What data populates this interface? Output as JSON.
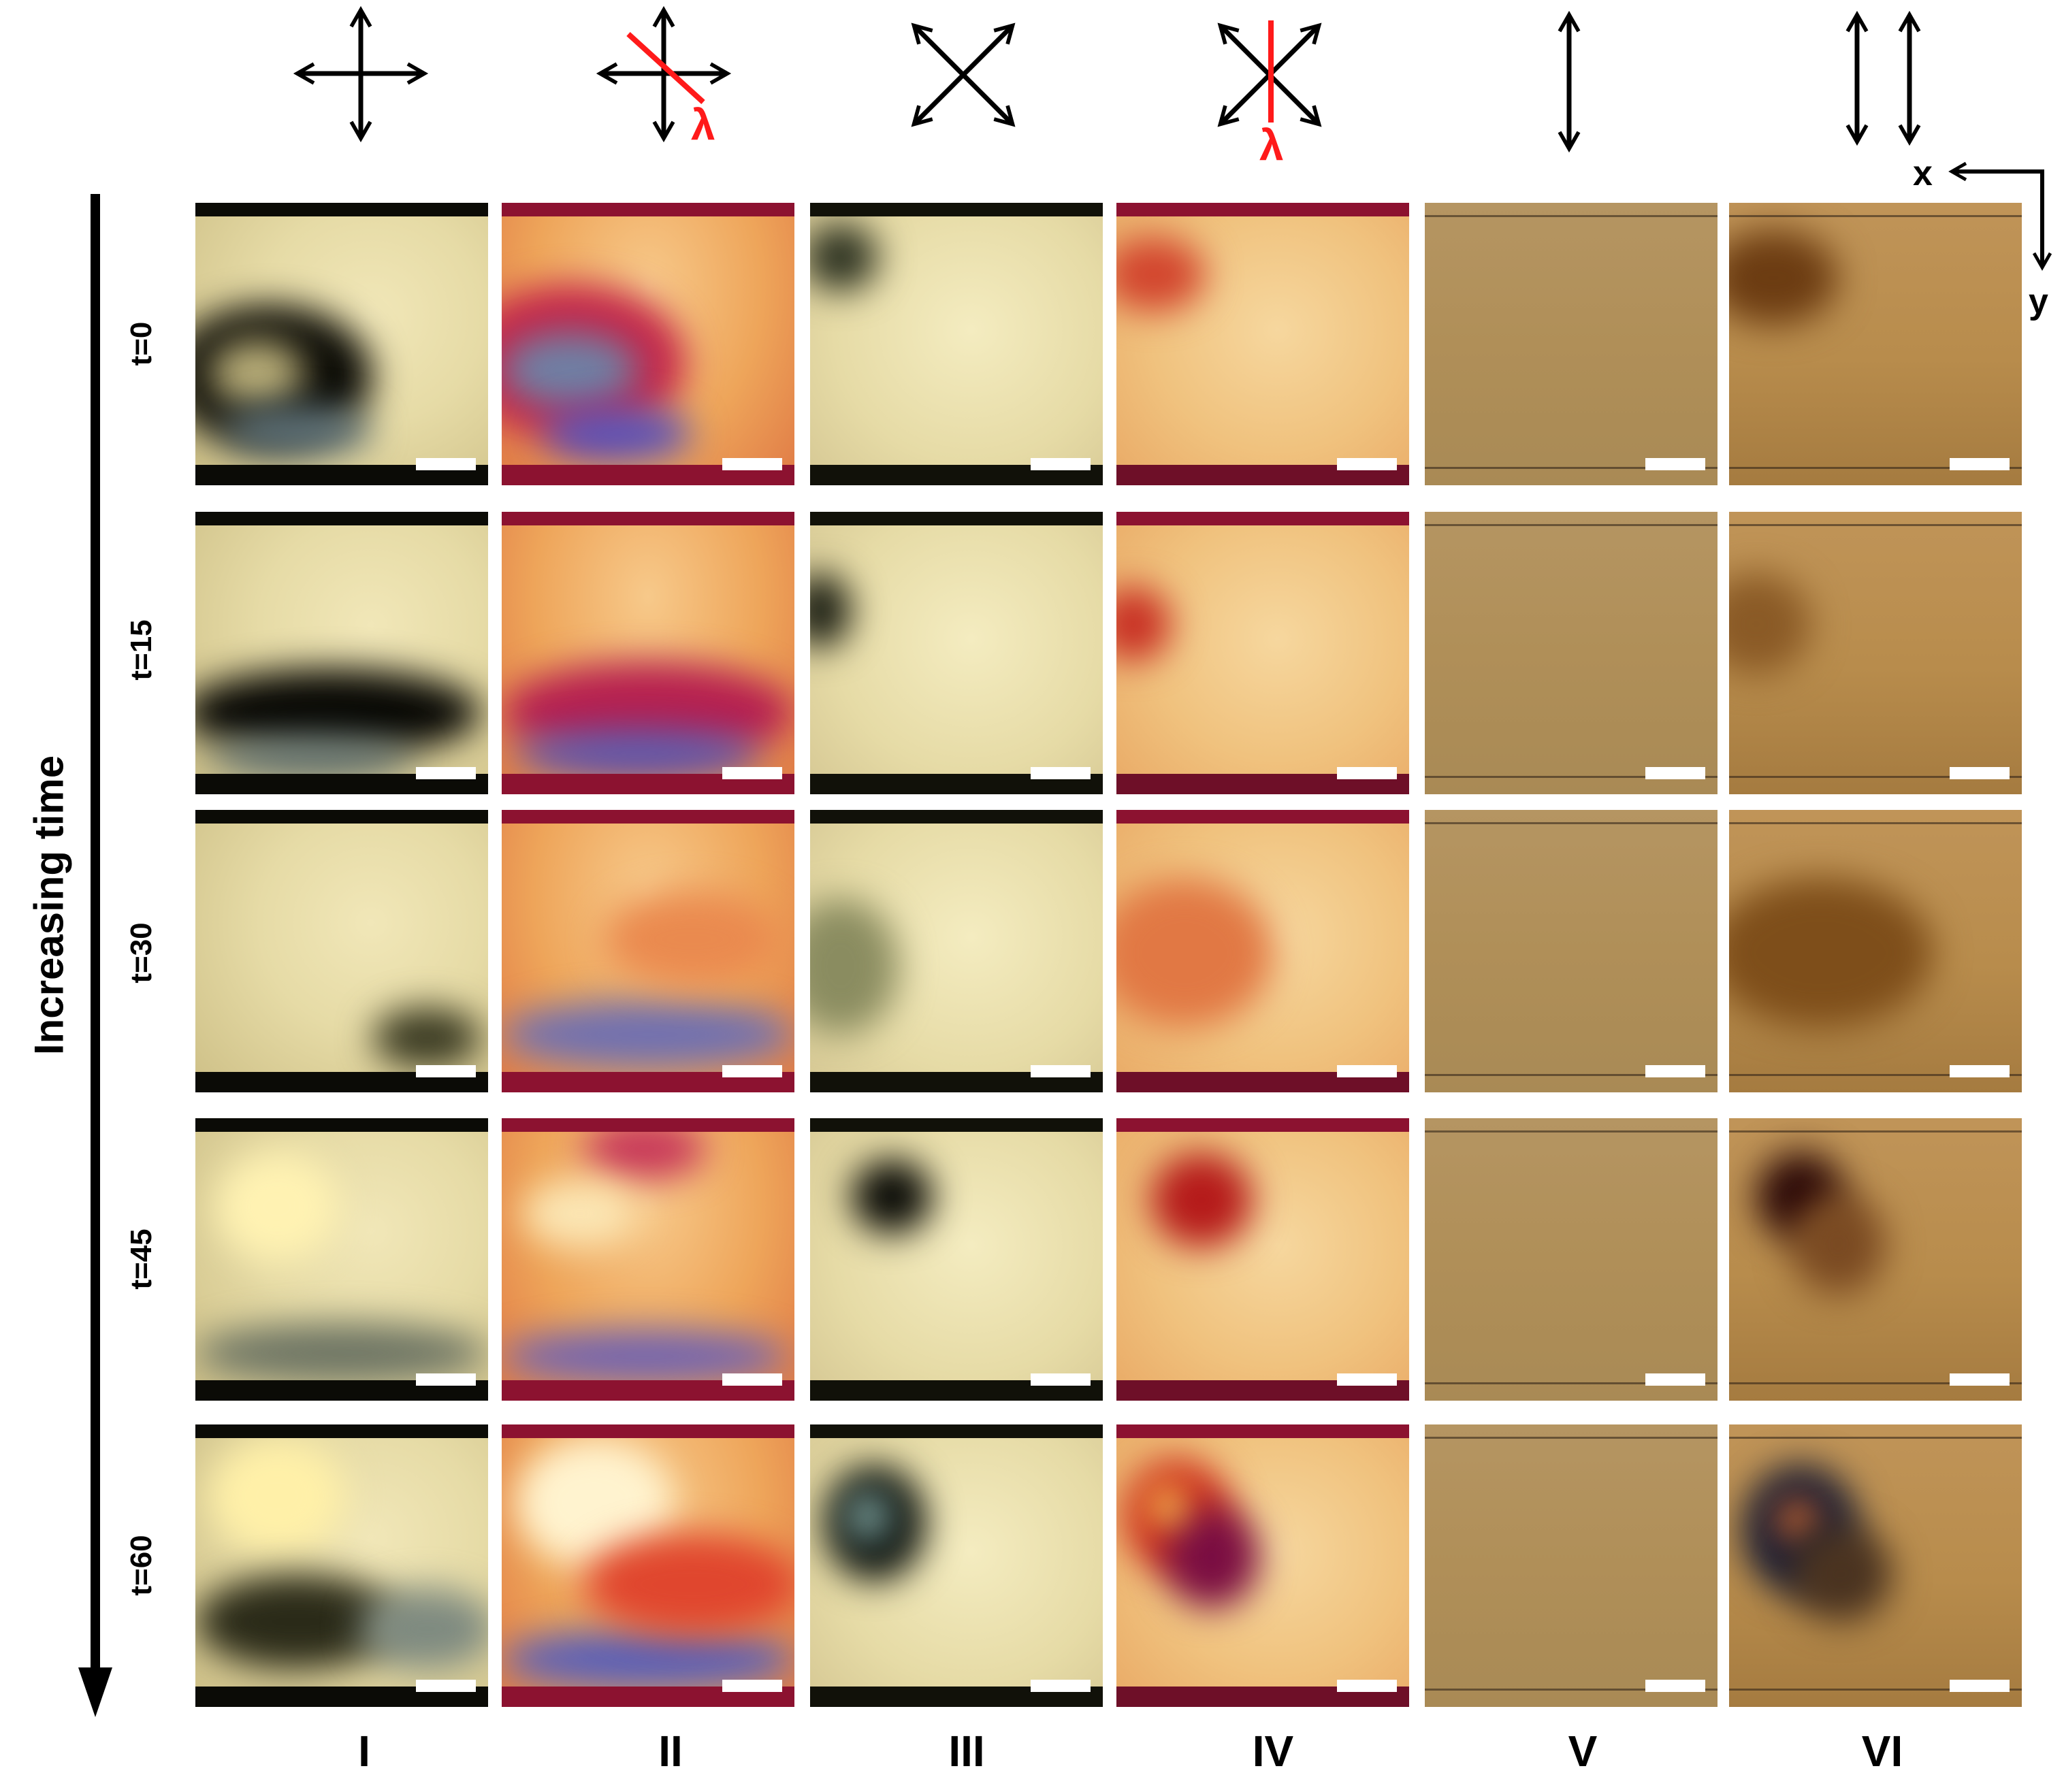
{
  "columns": [
    {
      "numeral": "I",
      "icon": "crossed-polarizers-icon"
    },
    {
      "numeral": "II",
      "icon": "crossed-polarizers-lambda-plate-icon",
      "lambda": "λ"
    },
    {
      "numeral": "III",
      "icon": "diagonal-crossed-polarizers-icon"
    },
    {
      "numeral": "IV",
      "icon": "diagonal-crossed-polarizers-lambda-plate-icon",
      "lambda": "λ"
    },
    {
      "numeral": "V",
      "icon": "single-polarizer-icon"
    },
    {
      "numeral": "VI",
      "icon": "parallel-polarizers-icon"
    }
  ],
  "rows": [
    {
      "label": "t=0"
    },
    {
      "label": "t=15"
    },
    {
      "label": "t=30"
    },
    {
      "label": "t=45"
    },
    {
      "label": "t=60"
    }
  ],
  "time_axis_label": "Increasing time",
  "axes": {
    "x": "x",
    "y": "y"
  },
  "colors": {
    "crossed_bright": "#e6dba6",
    "crossed_dark": "#0d0d08",
    "lambda_base": "#eea55a",
    "lambda_edge": "#8c1230",
    "lambda_arrow": "#ff1a1a",
    "brightfield": "#b08f58",
    "brightfield_parallel": "#b88c4c"
  }
}
